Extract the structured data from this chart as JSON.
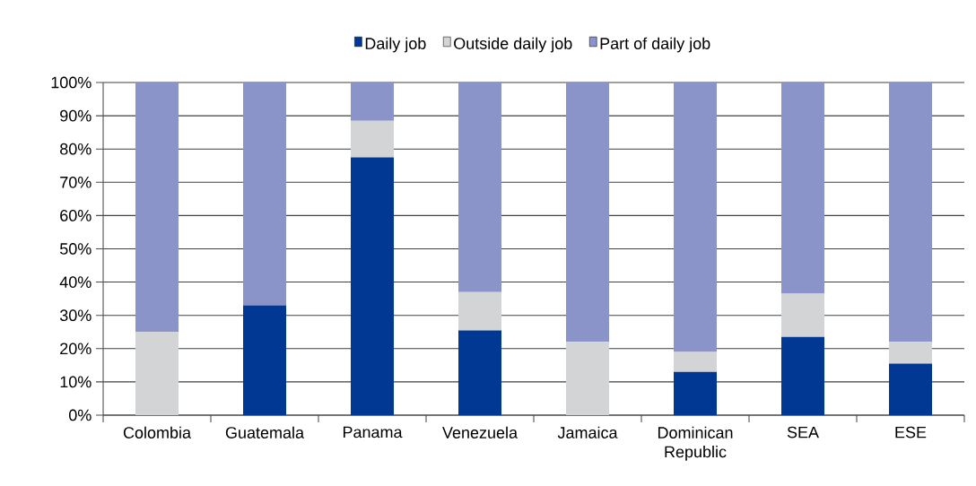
{
  "chart_data": {
    "type": "bar",
    "stacked": true,
    "categories": [
      "Colombia",
      "Guatemala",
      "Panama",
      "Venezuela",
      "Jamaica",
      "Dominican Republic",
      "SEA",
      "ESE"
    ],
    "series": [
      {
        "name": "Daily job",
        "color": "#003893",
        "values": [
          0,
          33,
          77.5,
          25.5,
          0,
          13,
          23.5,
          15.5
        ]
      },
      {
        "name": "Outside daily job",
        "color": "#d3d4d6",
        "values": [
          25,
          0,
          11,
          11.5,
          22,
          6,
          13,
          6.5
        ]
      },
      {
        "name": "Part of daily job",
        "color": "#8a94c9",
        "values": [
          75,
          67,
          11.5,
          63,
          78,
          81,
          63.5,
          78
        ]
      }
    ],
    "ylim": [
      0,
      100
    ],
    "yticks": [
      {
        "value": 0,
        "label": "0%"
      },
      {
        "value": 10,
        "label": "10%"
      },
      {
        "value": 20,
        "label": "20%"
      },
      {
        "value": 30,
        "label": "30%"
      },
      {
        "value": 40,
        "label": "40%"
      },
      {
        "value": 50,
        "label": "50%"
      },
      {
        "value": 60,
        "label": "60%"
      },
      {
        "value": 70,
        "label": "70%"
      },
      {
        "value": 80,
        "label": "80%"
      },
      {
        "value": 90,
        "label": "90%"
      },
      {
        "value": 100,
        "label": "100%"
      }
    ],
    "grid": "y",
    "legend": "top"
  }
}
